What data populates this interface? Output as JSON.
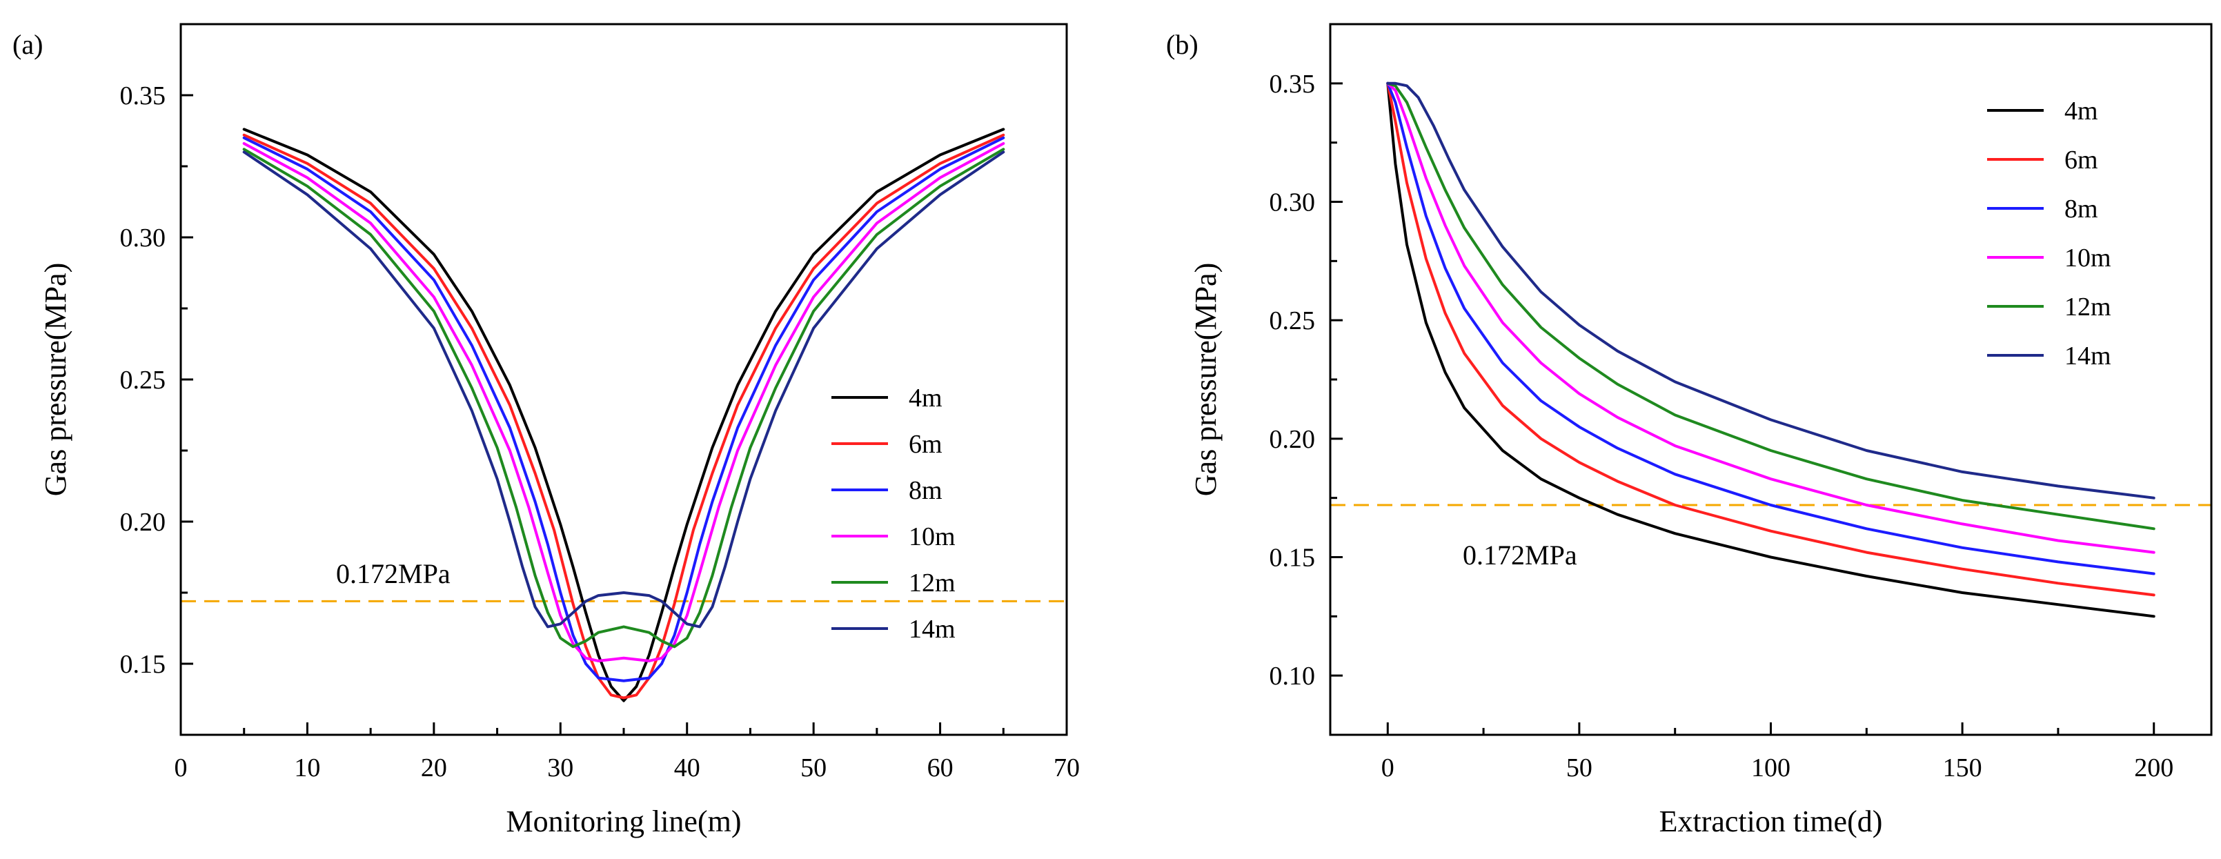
{
  "chart_data": [
    {
      "type": "line",
      "panel_label": "(a)",
      "xlabel": "Monitoring line(m)",
      "ylabel": "Gas pressure(MPa)",
      "xlim": [
        0,
        70
      ],
      "ylim": [
        0.125,
        0.375
      ],
      "xticks": [
        0,
        10,
        20,
        30,
        40,
        50,
        60,
        70
      ],
      "xtick_labels": [
        "0",
        "10",
        "20",
        "30",
        "40",
        "50",
        "60",
        "70"
      ],
      "yticks": [
        0.15,
        0.2,
        0.25,
        0.3,
        0.35
      ],
      "ytick_labels": [
        "0.15",
        "0.20",
        "0.25",
        "0.30",
        "0.35"
      ],
      "legend_position": "right",
      "grid": false,
      "reference_line": {
        "y": 0.172,
        "label": "0.172MPa",
        "color": "#f5a800",
        "style": "dashed"
      },
      "series": [
        {
          "name": "4m",
          "color": "#000000",
          "x": [
            5,
            10,
            15,
            20,
            23,
            26,
            28,
            30,
            31,
            32,
            33,
            34,
            35,
            36,
            37,
            38,
            39,
            40,
            42,
            44,
            47,
            50,
            55,
            60,
            65
          ],
          "y": [
            0.338,
            0.329,
            0.316,
            0.294,
            0.274,
            0.248,
            0.226,
            0.199,
            0.184,
            0.168,
            0.153,
            0.142,
            0.137,
            0.142,
            0.153,
            0.168,
            0.184,
            0.199,
            0.226,
            0.248,
            0.274,
            0.294,
            0.316,
            0.329,
            0.338
          ]
        },
        {
          "name": "6m",
          "color": "#ff2020",
          "x": [
            5,
            10,
            15,
            20,
            23,
            26,
            28,
            29.5,
            31,
            32,
            33,
            34,
            35,
            36,
            37,
            38,
            39,
            40.5,
            42,
            44,
            47,
            50,
            55,
            60,
            65
          ],
          "y": [
            0.336,
            0.326,
            0.312,
            0.289,
            0.268,
            0.241,
            0.217,
            0.197,
            0.171,
            0.156,
            0.145,
            0.139,
            0.138,
            0.139,
            0.145,
            0.156,
            0.171,
            0.197,
            0.217,
            0.241,
            0.268,
            0.289,
            0.312,
            0.326,
            0.336
          ]
        },
        {
          "name": "8m",
          "color": "#1c1cff",
          "x": [
            5,
            10,
            15,
            20,
            23,
            26,
            28,
            29,
            30,
            31,
            32,
            33,
            35,
            37,
            38,
            39,
            40,
            41,
            42,
            44,
            47,
            50,
            55,
            60,
            65
          ],
          "y": [
            0.335,
            0.324,
            0.309,
            0.285,
            0.262,
            0.233,
            0.207,
            0.192,
            0.175,
            0.16,
            0.15,
            0.145,
            0.144,
            0.145,
            0.15,
            0.16,
            0.175,
            0.192,
            0.207,
            0.233,
            0.262,
            0.285,
            0.309,
            0.324,
            0.335
          ]
        },
        {
          "name": "10m",
          "color": "#ff00ff",
          "x": [
            5,
            10,
            15,
            20,
            23,
            26,
            27.5,
            29,
            30,
            31,
            32,
            33,
            35,
            37,
            38,
            39,
            40,
            41,
            42.5,
            44,
            47,
            50,
            55,
            60,
            65
          ],
          "y": [
            0.333,
            0.321,
            0.305,
            0.279,
            0.255,
            0.225,
            0.205,
            0.182,
            0.167,
            0.157,
            0.152,
            0.151,
            0.152,
            0.151,
            0.152,
            0.157,
            0.167,
            0.182,
            0.205,
            0.225,
            0.255,
            0.279,
            0.305,
            0.321,
            0.333
          ]
        },
        {
          "name": "12m",
          "color": "#1f8a1f",
          "x": [
            5,
            10,
            15,
            20,
            23,
            25,
            26.5,
            28,
            29,
            30,
            31,
            32,
            33,
            35,
            37,
            38,
            39,
            40,
            41,
            42,
            43.5,
            45,
            47,
            50,
            55,
            60,
            65
          ],
          "y": [
            0.331,
            0.318,
            0.301,
            0.274,
            0.247,
            0.226,
            0.205,
            0.181,
            0.168,
            0.159,
            0.156,
            0.158,
            0.161,
            0.163,
            0.161,
            0.158,
            0.156,
            0.159,
            0.168,
            0.181,
            0.205,
            0.226,
            0.247,
            0.274,
            0.301,
            0.318,
            0.331
          ]
        },
        {
          "name": "14m",
          "color": "#1f2a8a",
          "x": [
            5,
            10,
            15,
            20,
            23,
            25,
            26,
            27,
            28,
            29,
            30,
            31,
            32,
            33,
            35,
            37,
            38,
            39,
            40,
            41,
            42,
            43,
            44,
            45,
            47,
            50,
            55,
            60,
            65
          ],
          "y": [
            0.33,
            0.315,
            0.296,
            0.268,
            0.239,
            0.215,
            0.2,
            0.184,
            0.17,
            0.163,
            0.164,
            0.168,
            0.172,
            0.174,
            0.175,
            0.174,
            0.172,
            0.168,
            0.164,
            0.163,
            0.17,
            0.184,
            0.2,
            0.215,
            0.239,
            0.268,
            0.296,
            0.315,
            0.33
          ]
        }
      ]
    },
    {
      "type": "line",
      "panel_label": "(b)",
      "xlabel": "Extraction time(d)",
      "ylabel": "Gas pressure(MPa)",
      "xlim": [
        -15,
        215
      ],
      "ylim": [
        0.075,
        0.375
      ],
      "xticks": [
        0,
        50,
        100,
        150,
        200
      ],
      "xtick_labels": [
        "0",
        "50",
        "100",
        "150",
        "200"
      ],
      "yticks": [
        0.1,
        0.15,
        0.2,
        0.25,
        0.3,
        0.35
      ],
      "ytick_labels": [
        "0.10",
        "0.15",
        "0.20",
        "0.25",
        "0.30",
        "0.35"
      ],
      "legend_position": "top-right",
      "grid": false,
      "reference_line": {
        "y": 0.172,
        "label": "0.172MPa",
        "color": "#f5a800",
        "style": "dashed"
      },
      "series": [
        {
          "name": "4m",
          "color": "#000000",
          "x": [
            0,
            2,
            5,
            10,
            15,
            20,
            30,
            40,
            50,
            60,
            75,
            100,
            125,
            150,
            175,
            200
          ],
          "y": [
            0.35,
            0.316,
            0.282,
            0.249,
            0.228,
            0.213,
            0.195,
            0.183,
            0.175,
            0.168,
            0.16,
            0.15,
            0.142,
            0.135,
            0.13,
            0.125
          ]
        },
        {
          "name": "6m",
          "color": "#ff2020",
          "x": [
            0,
            2,
            5,
            10,
            15,
            20,
            30,
            40,
            50,
            60,
            75,
            100,
            125,
            150,
            175,
            200
          ],
          "y": [
            0.35,
            0.334,
            0.308,
            0.276,
            0.253,
            0.236,
            0.214,
            0.2,
            0.19,
            0.182,
            0.172,
            0.161,
            0.152,
            0.145,
            0.139,
            0.134
          ]
        },
        {
          "name": "8m",
          "color": "#1c1cff",
          "x": [
            0,
            2,
            5,
            10,
            15,
            20,
            30,
            40,
            50,
            60,
            75,
            100,
            125,
            150,
            175,
            200
          ],
          "y": [
            0.35,
            0.342,
            0.323,
            0.294,
            0.272,
            0.255,
            0.232,
            0.216,
            0.205,
            0.196,
            0.185,
            0.172,
            0.162,
            0.154,
            0.148,
            0.143
          ]
        },
        {
          "name": "10m",
          "color": "#ff00ff",
          "x": [
            0,
            2,
            5,
            10,
            15,
            20,
            30,
            40,
            50,
            60,
            75,
            100,
            125,
            150,
            175,
            200
          ],
          "y": [
            0.35,
            0.347,
            0.334,
            0.31,
            0.29,
            0.273,
            0.249,
            0.232,
            0.219,
            0.209,
            0.197,
            0.183,
            0.172,
            0.164,
            0.157,
            0.152
          ]
        },
        {
          "name": "12m",
          "color": "#1f8a1f",
          "x": [
            0,
            2,
            5,
            10,
            15,
            20,
            30,
            40,
            50,
            60,
            75,
            100,
            125,
            150,
            175,
            200
          ],
          "y": [
            0.35,
            0.349,
            0.342,
            0.323,
            0.305,
            0.289,
            0.265,
            0.247,
            0.234,
            0.223,
            0.21,
            0.195,
            0.183,
            0.174,
            0.168,
            0.162
          ]
        },
        {
          "name": "14m",
          "color": "#1f2a8a",
          "x": [
            0,
            2,
            5,
            8,
            12,
            16,
            20,
            30,
            40,
            50,
            60,
            75,
            100,
            125,
            150,
            175,
            200
          ],
          "y": [
            0.35,
            0.35,
            0.349,
            0.344,
            0.332,
            0.318,
            0.305,
            0.281,
            0.262,
            0.248,
            0.237,
            0.224,
            0.208,
            0.195,
            0.186,
            0.18,
            0.175
          ]
        }
      ]
    }
  ]
}
